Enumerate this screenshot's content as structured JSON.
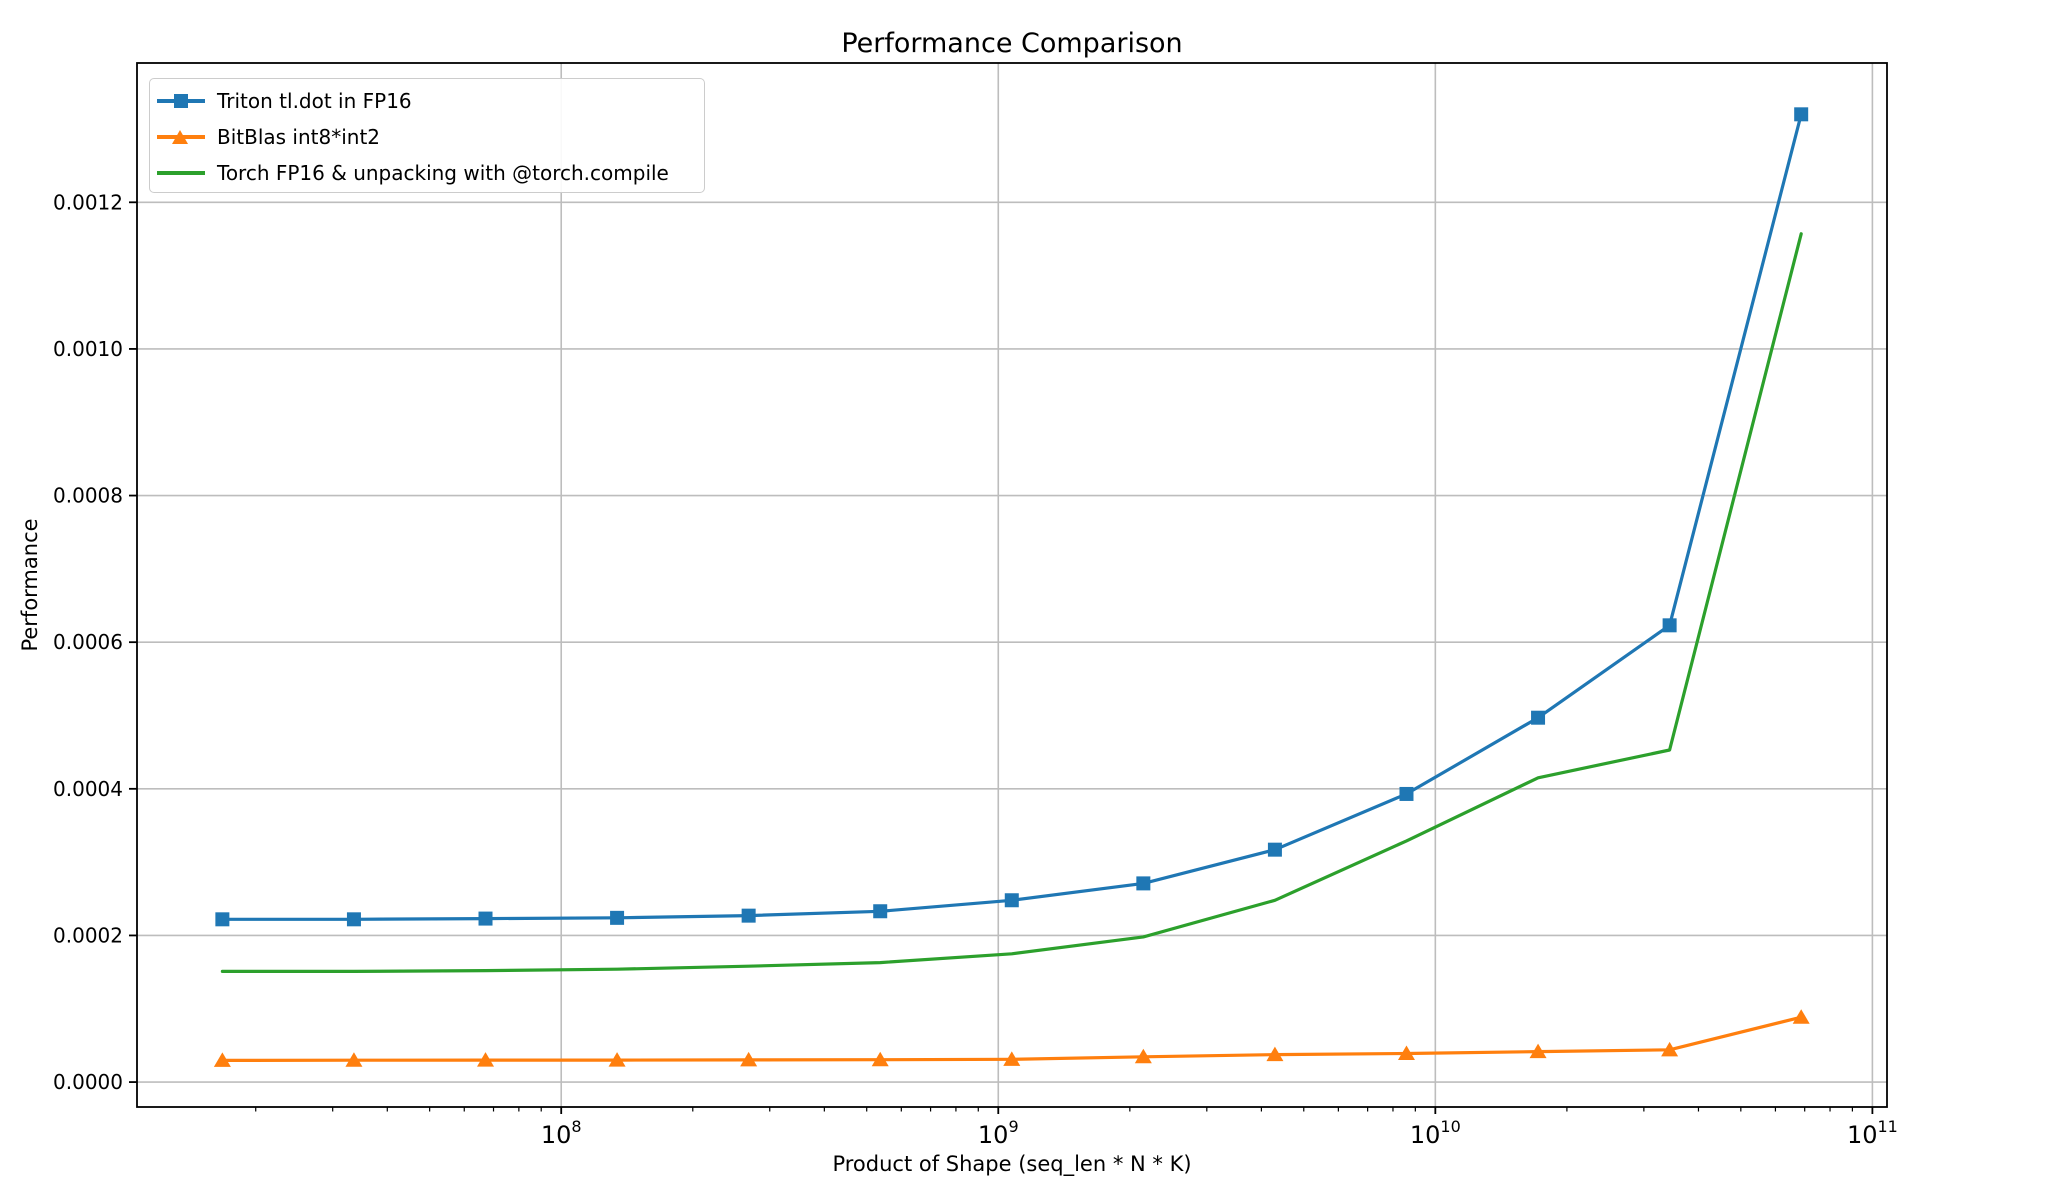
{
  "chart_data": {
    "type": "line",
    "title": "Performance Comparison",
    "xlabel": "Product of Shape (seq_len * N * K)",
    "ylabel": "Performance",
    "x_scale": "log",
    "y_scale": "linear",
    "grid": true,
    "legend_position": "upper left",
    "xlim": [
      10700000,
      108000000000
    ],
    "ylim": [
      -3.4e-05,
      0.00139
    ],
    "x": [
      16777216,
      33554432,
      67108864,
      134217728,
      268435456,
      536870912,
      1073741824,
      2147483648,
      4294967296,
      8589934592,
      17179869184,
      34359738368,
      68719476736
    ],
    "series": [
      {
        "name": "Triton tl.dot in FP16",
        "color": "#1f77b4",
        "marker": "square",
        "values": [
          0.000222,
          0.000222,
          0.000223,
          0.000224,
          0.000227,
          0.000233,
          0.000248,
          0.000271,
          0.000317,
          0.000393,
          0.000497,
          0.000623,
          0.00132
        ]
      },
      {
        "name": "BitBlas int8*int2",
        "color": "#ff7f0e",
        "marker": "triangle",
        "values": [
          2.96e-05,
          2.98e-05,
          3e-05,
          3e-05,
          3.02e-05,
          3.05e-05,
          3.1e-05,
          3.45e-05,
          3.75e-05,
          3.9e-05,
          4.15e-05,
          4.4e-05,
          8.85e-05
        ]
      },
      {
        "name": "Torch FP16 & unpacking with @torch.compile",
        "color": "#2ca02c",
        "marker": "none",
        "values": [
          0.000151,
          0.000151,
          0.000152,
          0.000154,
          0.000158,
          0.000163,
          0.000175,
          0.000198,
          0.000248,
          0.000329,
          0.000415,
          0.000453,
          0.001157
        ]
      }
    ],
    "yticks": {
      "values": [
        0,
        0.0002,
        0.0004,
        0.0006,
        0.0008,
        0.001,
        0.0012
      ],
      "labels": [
        "0.0000",
        "0.0002",
        "0.0004",
        "0.0006",
        "0.0008",
        "0.0010",
        "0.0012"
      ]
    },
    "xticks": [
      {
        "value": 100000000,
        "base": "10",
        "exp": "8"
      },
      {
        "value": 1000000000,
        "base": "10",
        "exp": "9"
      },
      {
        "value": 10000000000,
        "base": "10",
        "exp": "10"
      },
      {
        "value": 100000000000,
        "base": "10",
        "exp": "11"
      }
    ],
    "colors": {
      "grid": "#bdbdbd",
      "spine": "#000000",
      "text": "#000000",
      "background": "#ffffff"
    }
  }
}
